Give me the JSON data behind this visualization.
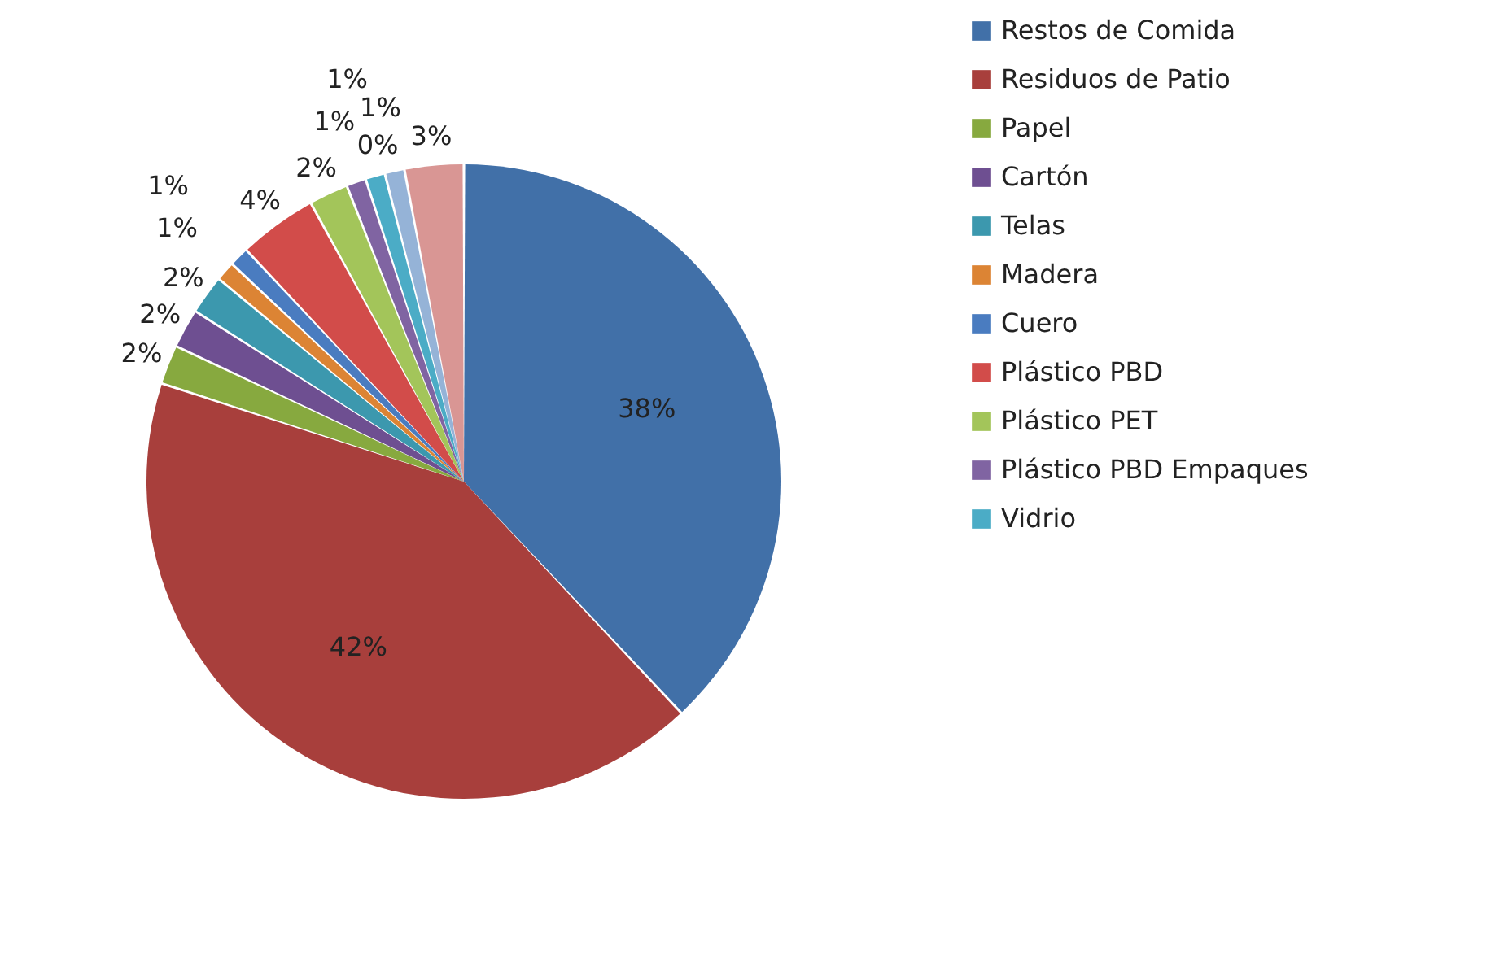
{
  "chart_data": {
    "type": "pie",
    "categories": [
      "Restos de Comida",
      "Residuos de Patio",
      "Papel",
      "Cartón",
      "Telas",
      "Madera",
      "Cuero",
      "Plástico PBD",
      "Plástico PET",
      "Plástico PBD Empaques",
      "Vidrio",
      null,
      null,
      null
    ],
    "values": [
      38,
      42,
      2,
      2,
      2,
      1,
      1,
      4,
      2,
      1,
      1,
      0,
      1,
      3
    ],
    "value_labels": [
      "38%",
      "42%",
      "2%",
      "2%",
      "2%",
      "1%",
      "1%",
      "4%",
      "2%",
      "1%",
      "1%",
      "0%",
      "1%",
      "3%"
    ],
    "colors": [
      "#4170a8",
      "#a83f3c",
      "#87a93f",
      "#6e4f91",
      "#3c98ae",
      "#dc8434",
      "#4a7cc0",
      "#d24c4a",
      "#a3c55a",
      "#8064a2",
      "#4bacc6",
      "#f79646",
      "#95b3d7",
      "#d99694"
    ],
    "legend": "right"
  }
}
